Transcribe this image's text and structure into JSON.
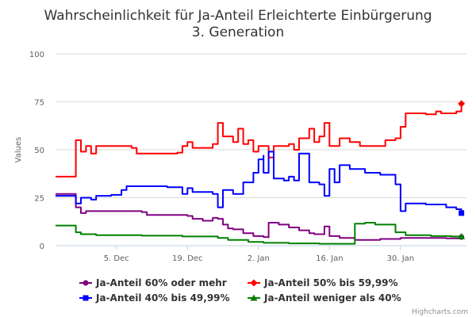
{
  "chart_data": {
    "type": "line",
    "title_line1": "Wahrscheinlichkeit für Ja-Anteil Erleichterte Einbürgerung",
    "title_line2": "3. Generation",
    "ylabel": "Values",
    "ylim": [
      0,
      100
    ],
    "yticks": [
      0,
      25,
      50,
      75,
      100
    ],
    "xlim": [
      "2016-11-23",
      "2017-02-12"
    ],
    "xticks": [
      {
        "date": "2016-12-05",
        "label": "5. Dec"
      },
      {
        "date": "2016-12-19",
        "label": "19. Dec"
      },
      {
        "date": "2017-01-02",
        "label": "2. Jan"
      },
      {
        "date": "2017-01-16",
        "label": "16. Jan"
      },
      {
        "date": "2017-01-30",
        "label": "30. Jan"
      }
    ],
    "grid": true,
    "legend_position": "bottom",
    "series": [
      {
        "name": "Ja-Anteil 60% oder mehr",
        "color": "#800080",
        "marker": "circle",
        "points": [
          [
            "2016-11-23",
            27
          ],
          [
            "2016-11-27",
            27
          ],
          [
            "2016-11-27",
            20
          ],
          [
            "2016-11-28",
            17
          ],
          [
            "2016-11-29",
            18
          ],
          [
            "2016-12-10",
            17.5
          ],
          [
            "2016-12-11",
            16
          ],
          [
            "2016-12-19",
            15.5
          ],
          [
            "2016-12-20",
            14
          ],
          [
            "2016-12-22",
            13
          ],
          [
            "2016-12-24",
            14.5
          ],
          [
            "2016-12-25",
            14
          ],
          [
            "2016-12-26",
            11
          ],
          [
            "2016-12-27",
            9
          ],
          [
            "2016-12-28",
            8.5
          ],
          [
            "2016-12-30",
            6.5
          ],
          [
            "2017-01-01",
            5
          ],
          [
            "2017-01-03",
            4.5
          ],
          [
            "2017-01-04",
            4.3
          ],
          [
            "2017-01-04",
            12
          ],
          [
            "2017-01-06",
            11
          ],
          [
            "2017-01-08",
            9.5
          ],
          [
            "2017-01-10",
            8
          ],
          [
            "2017-01-12",
            6.5
          ],
          [
            "2017-01-13",
            6
          ],
          [
            "2017-01-15",
            10
          ],
          [
            "2017-01-16",
            5
          ],
          [
            "2017-01-18",
            4
          ],
          [
            "2017-01-21",
            3
          ],
          [
            "2017-01-26",
            3.5
          ],
          [
            "2017-01-30",
            4
          ],
          [
            "2017-02-05",
            4
          ],
          [
            "2017-02-08",
            3.8
          ],
          [
            "2017-02-11",
            4.5
          ]
        ]
      },
      {
        "name": "Ja-Anteil 50% bis 59,99%",
        "color": "#ff0000",
        "marker": "diamond",
        "points": [
          [
            "2016-11-23",
            36
          ],
          [
            "2016-11-27",
            36
          ],
          [
            "2016-11-27",
            55
          ],
          [
            "2016-11-28",
            49
          ],
          [
            "2016-11-29",
            52
          ],
          [
            "2016-11-30",
            48
          ],
          [
            "2016-12-01",
            52
          ],
          [
            "2016-12-08",
            51
          ],
          [
            "2016-12-09",
            48
          ],
          [
            "2016-12-17",
            48.5
          ],
          [
            "2016-12-18",
            52
          ],
          [
            "2016-12-19",
            54
          ],
          [
            "2016-12-20",
            51
          ],
          [
            "2016-12-24",
            53
          ],
          [
            "2016-12-25",
            64
          ],
          [
            "2016-12-26",
            57
          ],
          [
            "2016-12-28",
            54
          ],
          [
            "2016-12-29",
            61
          ],
          [
            "2016-12-30",
            53
          ],
          [
            "2016-12-31",
            55
          ],
          [
            "2017-01-01",
            49
          ],
          [
            "2017-01-02",
            52
          ],
          [
            "2017-01-04",
            46
          ],
          [
            "2017-01-05",
            52
          ],
          [
            "2017-01-08",
            53
          ],
          [
            "2017-01-09",
            50
          ],
          [
            "2017-01-10",
            56
          ],
          [
            "2017-01-12",
            61
          ],
          [
            "2017-01-13",
            54
          ],
          [
            "2017-01-14",
            57
          ],
          [
            "2017-01-15",
            64
          ],
          [
            "2017-01-16",
            52
          ],
          [
            "2017-01-18",
            56
          ],
          [
            "2017-01-20",
            54
          ],
          [
            "2017-01-22",
            52
          ],
          [
            "2017-01-25",
            52
          ],
          [
            "2017-01-27",
            55
          ],
          [
            "2017-01-29",
            56
          ],
          [
            "2017-01-30",
            62
          ],
          [
            "2017-01-31",
            69
          ],
          [
            "2017-02-04",
            68.5
          ],
          [
            "2017-02-06",
            70
          ],
          [
            "2017-02-07",
            69
          ],
          [
            "2017-02-10",
            70
          ],
          [
            "2017-02-11",
            74
          ]
        ]
      },
      {
        "name": "Ja-Anteil 40% bis 49,99%",
        "color": "#0000ff",
        "marker": "square",
        "points": [
          [
            "2016-11-23",
            26
          ],
          [
            "2016-11-27",
            26
          ],
          [
            "2016-11-27",
            22
          ],
          [
            "2016-11-28",
            25
          ],
          [
            "2016-11-30",
            24
          ],
          [
            "2016-12-01",
            26
          ],
          [
            "2016-12-04",
            26.5
          ],
          [
            "2016-12-06",
            29
          ],
          [
            "2016-12-07",
            31
          ],
          [
            "2016-12-15",
            30.5
          ],
          [
            "2016-12-18",
            27
          ],
          [
            "2016-12-19",
            30
          ],
          [
            "2016-12-20",
            28
          ],
          [
            "2016-12-24",
            27
          ],
          [
            "2016-12-25",
            20
          ],
          [
            "2016-12-26",
            29
          ],
          [
            "2016-12-28",
            27
          ],
          [
            "2016-12-30",
            33
          ],
          [
            "2017-01-01",
            38
          ],
          [
            "2017-01-02",
            45
          ],
          [
            "2017-01-03",
            47
          ],
          [
            "2017-01-03",
            38
          ],
          [
            "2017-01-04",
            49
          ],
          [
            "2017-01-05",
            35
          ],
          [
            "2017-01-07",
            34
          ],
          [
            "2017-01-08",
            36
          ],
          [
            "2017-01-09",
            34
          ],
          [
            "2017-01-10",
            48
          ],
          [
            "2017-01-12",
            33
          ],
          [
            "2017-01-14",
            32
          ],
          [
            "2017-01-15",
            26
          ],
          [
            "2017-01-16",
            40
          ],
          [
            "2017-01-17",
            33
          ],
          [
            "2017-01-18",
            42
          ],
          [
            "2017-01-20",
            40
          ],
          [
            "2017-01-23",
            38
          ],
          [
            "2017-01-26",
            37
          ],
          [
            "2017-01-29",
            32
          ],
          [
            "2017-01-30",
            18
          ],
          [
            "2017-01-31",
            22
          ],
          [
            "2017-02-04",
            21.5
          ],
          [
            "2017-02-08",
            20
          ],
          [
            "2017-02-10",
            19
          ],
          [
            "2017-02-11",
            17
          ]
        ]
      },
      {
        "name": "Ja-Anteil weniger als 40%",
        "color": "#008000",
        "marker": "triangle",
        "points": [
          [
            "2016-11-23",
            10.5
          ],
          [
            "2016-11-27",
            10.5
          ],
          [
            "2016-11-27",
            7
          ],
          [
            "2016-11-28",
            6
          ],
          [
            "2016-12-01",
            5.5
          ],
          [
            "2016-12-10",
            5.2
          ],
          [
            "2016-12-18",
            4.8
          ],
          [
            "2016-12-25",
            4
          ],
          [
            "2016-12-27",
            3
          ],
          [
            "2016-12-31",
            2
          ],
          [
            "2017-01-03",
            1.5
          ],
          [
            "2017-01-08",
            1.2
          ],
          [
            "2017-01-14",
            1
          ],
          [
            "2017-01-20",
            1
          ],
          [
            "2017-01-21",
            11.5
          ],
          [
            "2017-01-23",
            12
          ],
          [
            "2017-01-25",
            11
          ],
          [
            "2017-01-27",
            11
          ],
          [
            "2017-01-29",
            7
          ],
          [
            "2017-01-31",
            5.5
          ],
          [
            "2017-02-05",
            5
          ],
          [
            "2017-02-09",
            4.8
          ],
          [
            "2017-02-11",
            4.8
          ]
        ]
      }
    ],
    "credits": "Highcharts.com"
  }
}
